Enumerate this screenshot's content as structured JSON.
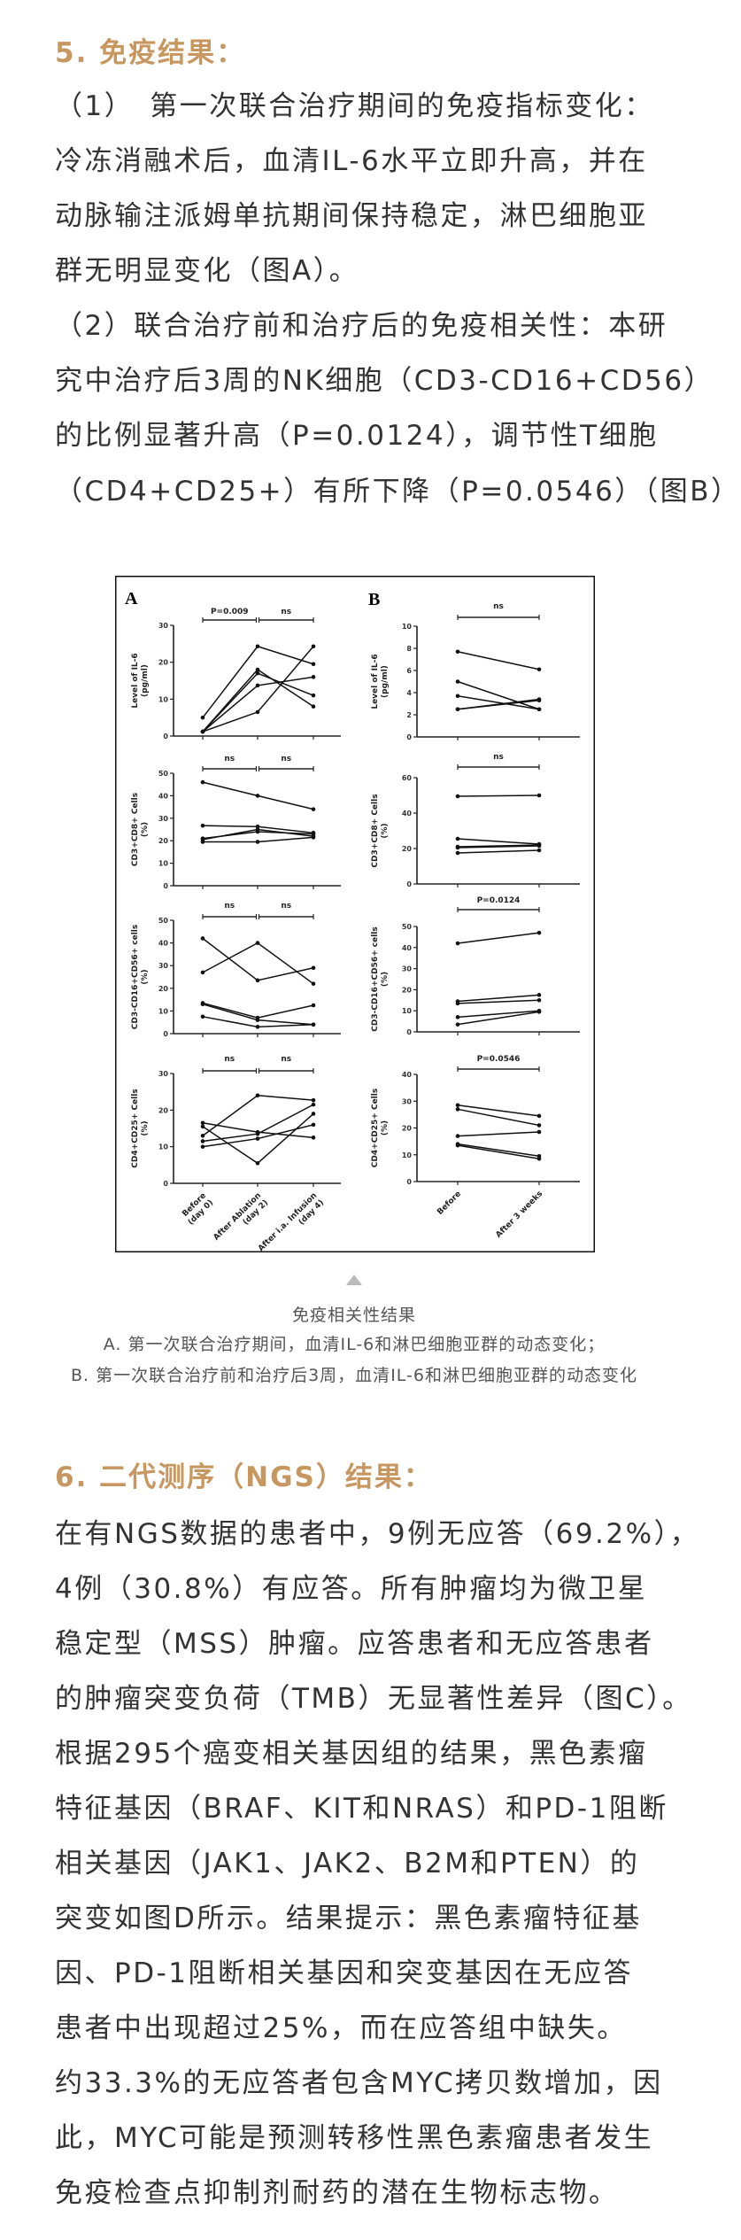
{
  "section5": {
    "title": "5. 免疫结果：",
    "lines": [
      "（1）　第一次联合治疗期间的免疫指标变化：",
      "冷冻消融术后，血清IL-6水平立即升高，并在",
      "动脉输注派姆单抗期间保持稳定，淋巴细胞亚",
      "群无明显变化（图A）。",
      "（2）联合治疗前和治疗后的免疫相关性：本研",
      "究中治疗后3周的NK细胞（CD3-CD16+CD56）",
      "的比例显著升高（P=0.0124），调节性T细胞",
      "（CD4+CD25+）有所下降（P=0.0546）（图B）"
    ]
  },
  "figure": {
    "caption_title": "免疫相关性结果",
    "caption_a": "A. 第一次联合治疗期间，血清IL-6和淋巴细胞亚群的动态变化；",
    "caption_b": "B. 第一次联合治疗前和治疗后3周，血清IL-6和淋巴细胞亚群的动态变化",
    "caret_icon": "triangle-up"
  },
  "chart_data": [
    {
      "type": "line",
      "panel": "A",
      "panel_label": "A",
      "ylabel": [
        "Level of IL-6",
        "(pg/ml)"
      ],
      "ylim": [
        0,
        30
      ],
      "yticks": [
        0,
        10,
        20,
        30
      ],
      "categories": [
        "Before (day 0)",
        "After Ablation (day 2)",
        "After i.a. Infusion (day 4)"
      ],
      "comparisons": [
        "P=0.009",
        "ns"
      ],
      "series": [
        {
          "values": [
            5,
            24.3,
            19.5
          ]
        },
        {
          "values": [
            1.2,
            18,
            8
          ]
        },
        {
          "values": [
            1.2,
            17,
            11
          ]
        },
        {
          "values": [
            1.2,
            13.7,
            16
          ]
        },
        {
          "values": [
            1.2,
            6.5,
            24.3
          ]
        }
      ]
    },
    {
      "type": "line",
      "panel": "B",
      "panel_label": "B",
      "ylabel": [
        "Level of IL-6",
        "(pg/ml)"
      ],
      "ylim": [
        0,
        10
      ],
      "yticks": [
        0,
        2,
        4,
        6,
        8,
        10
      ],
      "categories": [
        "Before",
        "After 3 weeks"
      ],
      "comparisons": [
        "ns"
      ],
      "series": [
        {
          "values": [
            7.7,
            6.1
          ]
        },
        {
          "values": [
            5,
            2.5
          ]
        },
        {
          "values": [
            3.7,
            2.5
          ]
        },
        {
          "values": [
            2.5,
            3.4
          ]
        },
        {
          "values": [
            2.5,
            3.3
          ]
        }
      ]
    },
    {
      "type": "line",
      "panel": "A",
      "ylabel": [
        "CD3+CD8+ Cells",
        "(%)"
      ],
      "ylim": [
        0,
        50
      ],
      "yticks": [
        0,
        10,
        20,
        30,
        40,
        50
      ],
      "categories": [
        "Before (day 0)",
        "After Ablation (day 2)",
        "After i.a. Infusion (day 4)"
      ],
      "comparisons": [
        "ns",
        "ns"
      ],
      "series": [
        {
          "values": [
            46,
            40,
            34
          ]
        },
        {
          "values": [
            26.7,
            26.3,
            23.5
          ]
        },
        {
          "values": [
            21,
            24,
            23
          ]
        },
        {
          "values": [
            20.5,
            25,
            22
          ]
        },
        {
          "values": [
            19.5,
            19.5,
            21.5
          ]
        }
      ]
    },
    {
      "type": "line",
      "panel": "B",
      "ylabel": [
        "CD3+CD8+ Cells",
        "(%)"
      ],
      "ylim": [
        0,
        60
      ],
      "yticks": [
        0,
        20,
        40,
        60
      ],
      "categories": [
        "Before",
        "After 3 weeks"
      ],
      "comparisons": [
        "ns"
      ],
      "series": [
        {
          "values": [
            49.5,
            50
          ]
        },
        {
          "values": [
            25.5,
            22.5
          ]
        },
        {
          "values": [
            21,
            22
          ]
        },
        {
          "values": [
            20.5,
            21.5
          ]
        },
        {
          "values": [
            17.5,
            19
          ]
        }
      ]
    },
    {
      "type": "line",
      "panel": "A",
      "ylabel": [
        "CD3-CD16+CD56+ cells",
        "(%)"
      ],
      "ylim": [
        0,
        50
      ],
      "yticks": [
        0,
        10,
        20,
        30,
        40,
        50
      ],
      "categories": [
        "Before (day 0)",
        "After Ablation (day 2)",
        "After i.a. Infusion (day 4)"
      ],
      "comparisons": [
        "ns",
        "ns"
      ],
      "series": [
        {
          "values": [
            42,
            23.5,
            29
          ]
        },
        {
          "values": [
            27,
            40,
            22
          ]
        },
        {
          "values": [
            13.5,
            7,
            12.5
          ]
        },
        {
          "values": [
            13,
            6,
            4
          ]
        },
        {
          "values": [
            7.5,
            3,
            4
          ]
        }
      ]
    },
    {
      "type": "line",
      "panel": "B",
      "ylabel": [
        "CD3-CD16+CD56+ cells",
        "(%)"
      ],
      "ylim": [
        0,
        50
      ],
      "yticks": [
        0,
        10,
        20,
        30,
        40,
        50
      ],
      "categories": [
        "Before",
        "After 3 weeks"
      ],
      "comparisons": [
        "P=0.0124"
      ],
      "series": [
        {
          "values": [
            42,
            47
          ]
        },
        {
          "values": [
            14.5,
            17.5
          ]
        },
        {
          "values": [
            13.5,
            15
          ]
        },
        {
          "values": [
            7,
            10
          ]
        },
        {
          "values": [
            3.5,
            9.5
          ]
        }
      ]
    },
    {
      "type": "line",
      "panel": "A",
      "ylabel": [
        "CD4+CD25+ Cells",
        "(%)"
      ],
      "ylim": [
        0,
        30
      ],
      "yticks": [
        0,
        10,
        20,
        30
      ],
      "categories": [
        "Before (day 0)",
        "After Ablation (day 2)",
        "After i.a. Infusion (day 4)"
      ],
      "comparisons": [
        "ns",
        "ns"
      ],
      "series": [
        {
          "values": [
            16.5,
            14,
            12.5
          ]
        },
        {
          "values": [
            15.5,
            5.5,
            19
          ]
        },
        {
          "values": [
            13,
            24,
            22.7
          ]
        },
        {
          "values": [
            11.5,
            13.5,
            21.5
          ]
        },
        {
          "values": [
            10,
            12.2,
            16
          ]
        }
      ]
    },
    {
      "type": "line",
      "panel": "B",
      "ylabel": [
        "CD4+CD25+ Cells",
        "(%)"
      ],
      "ylim": [
        0,
        40
      ],
      "yticks": [
        0,
        10,
        20,
        30,
        40
      ],
      "categories": [
        "Before",
        "After 3 weeks"
      ],
      "comparisons": [
        "P=0.0546"
      ],
      "series": [
        {
          "values": [
            28.5,
            24.5
          ]
        },
        {
          "values": [
            27,
            21
          ]
        },
        {
          "values": [
            17,
            18.5
          ]
        },
        {
          "values": [
            14,
            9.5
          ]
        },
        {
          "values": [
            13.5,
            8.5
          ]
        }
      ]
    }
  ],
  "section6": {
    "title": "6. 二代测序（NGS）结果：",
    "lines": [
      "在有NGS数据的患者中，9例无应答（69.2%），",
      "4例（30.8%）有应答。所有肿瘤均为微卫星",
      "稳定型（MSS）肿瘤。应答患者和无应答患者",
      "的肿瘤突变负荷（TMB）无显著性差异（图C）。",
      "根据295个癌变相关基因组的结果，黑色素瘤",
      "特征基因（BRAF、KIT和NRAS）和PD-1阻断",
      "相关基因（JAK1、JAK2、B2M和PTEN）的",
      "突变如图D所示。结果提示：黑色素瘤特征基",
      "因、PD-1阻断相关基因和突变基因在无应答",
      "患者中出现超过25%，而在应答组中缺失。",
      "约33.3%的无应答者包含MYC拷贝数增加，因",
      "此，MYC可能是预测转移性黑色素瘤患者发生",
      "免疫检查点抑制剂耐药的潜在生物标志物。"
    ]
  },
  "colors": {
    "heading": "#c8965f",
    "body": "#333333",
    "caption": "#555555"
  }
}
